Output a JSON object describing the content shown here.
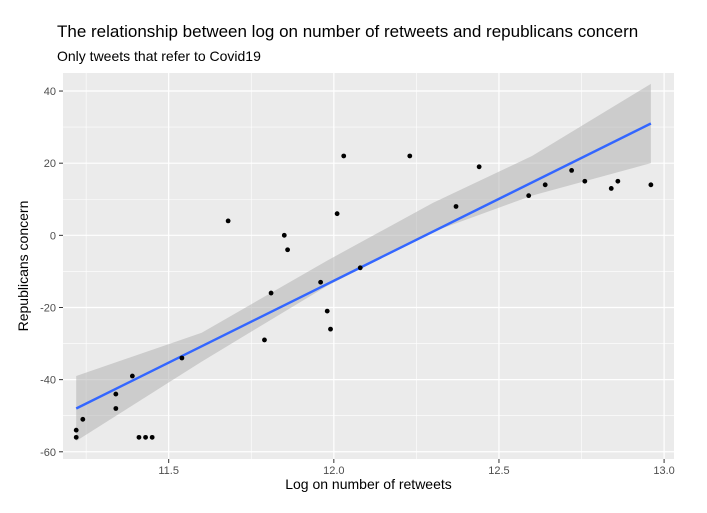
{
  "chart_data": {
    "type": "scatter",
    "title": "The relationship between log on number of retweets and republicans concern",
    "subtitle": "Only tweets that refer to Covid19",
    "xlabel": "Log on number of retweets",
    "ylabel": "Republicans concern",
    "xlim": [
      11.18,
      13.03
    ],
    "ylim": [
      -62,
      45
    ],
    "xticks": [
      11.5,
      12.0,
      12.5,
      13.0
    ],
    "xtick_labels": [
      "11.5",
      "12.0",
      "12.5",
      "13.0"
    ],
    "yticks": [
      -60,
      -40,
      -20,
      0,
      20,
      40
    ],
    "ytick_labels": [
      "-60",
      "-40",
      "-20",
      "0",
      "20",
      "40"
    ],
    "grid": true,
    "background": "#ebebeb",
    "grid_color": "#ffffff",
    "point_color": "#000000",
    "fit_line_color": "#3366ff",
    "ribbon_color": "#b3b3b3",
    "points": [
      {
        "x": 11.22,
        "y": -56
      },
      {
        "x": 11.22,
        "y": -54
      },
      {
        "x": 11.24,
        "y": -51
      },
      {
        "x": 11.34,
        "y": -44
      },
      {
        "x": 11.34,
        "y": -48
      },
      {
        "x": 11.39,
        "y": -39
      },
      {
        "x": 11.41,
        "y": -56
      },
      {
        "x": 11.43,
        "y": -56
      },
      {
        "x": 11.45,
        "y": -56
      },
      {
        "x": 11.54,
        "y": -34
      },
      {
        "x": 11.68,
        "y": 4
      },
      {
        "x": 11.79,
        "y": -29
      },
      {
        "x": 11.81,
        "y": -16
      },
      {
        "x": 11.85,
        "y": 0
      },
      {
        "x": 11.86,
        "y": -4
      },
      {
        "x": 11.96,
        "y": -13
      },
      {
        "x": 11.98,
        "y": -21
      },
      {
        "x": 11.99,
        "y": -26
      },
      {
        "x": 12.01,
        "y": 6
      },
      {
        "x": 12.03,
        "y": 22
      },
      {
        "x": 12.08,
        "y": -9
      },
      {
        "x": 12.23,
        "y": 22
      },
      {
        "x": 12.37,
        "y": 8
      },
      {
        "x": 12.44,
        "y": 19
      },
      {
        "x": 12.59,
        "y": 11
      },
      {
        "x": 12.64,
        "y": 14
      },
      {
        "x": 12.72,
        "y": 18
      },
      {
        "x": 12.76,
        "y": 15
      },
      {
        "x": 12.84,
        "y": 13
      },
      {
        "x": 12.86,
        "y": 15
      },
      {
        "x": 12.96,
        "y": 14
      }
    ],
    "fit": {
      "x": [
        11.22,
        12.96
      ],
      "y": [
        -48,
        31
      ],
      "ribbon": [
        {
          "x": 11.22,
          "lo": -57,
          "hi": -39
        },
        {
          "x": 11.6,
          "lo": -35,
          "hi": -27
        },
        {
          "x": 11.98,
          "lo": -14,
          "hi": -7
        },
        {
          "x": 12.3,
          "lo": 1,
          "hi": 9
        },
        {
          "x": 12.6,
          "lo": 11,
          "hi": 22
        },
        {
          "x": 12.96,
          "lo": 20,
          "hi": 42
        }
      ]
    }
  }
}
